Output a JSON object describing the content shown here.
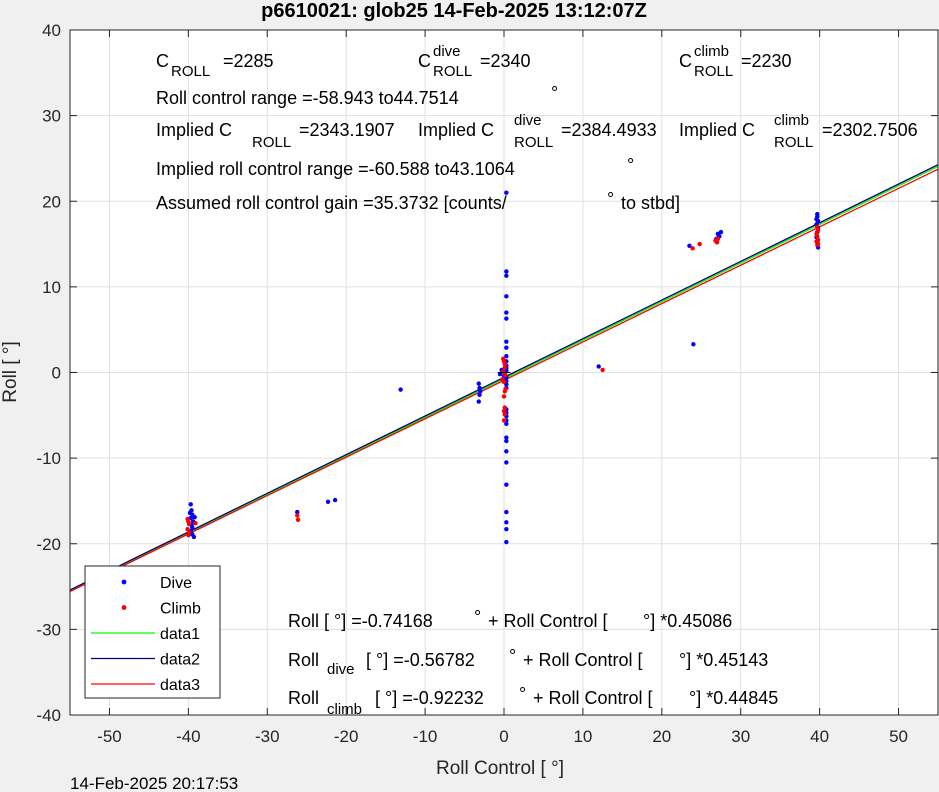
{
  "chart_data": {
    "type": "scatter",
    "title": "p6610021: glob25 14-Feb-2025 13:12:07Z",
    "xlabel": "Roll Control [   °]",
    "ylabel": "Roll [   °]",
    "xlim": [
      -55,
      55
    ],
    "ylim": [
      -40,
      40
    ],
    "xticks": [
      -50,
      -40,
      -30,
      -20,
      -10,
      0,
      10,
      20,
      30,
      40,
      50
    ],
    "yticks": [
      -40,
      -30,
      -20,
      -10,
      0,
      10,
      20,
      30,
      40
    ],
    "grid": true,
    "legend_position": "bottom-left",
    "colors": {
      "dive": "#0000ff",
      "climb": "#ff0000",
      "data1": "#00ff00",
      "data2": "#00007f",
      "data3": "#ff0000"
    },
    "series": [
      {
        "name": "Dive",
        "mode": "markers",
        "points": [
          [
            -39.7,
            -15.4
          ],
          [
            -39.6,
            -16.1
          ],
          [
            -39.5,
            -16.6
          ],
          [
            -39.7,
            -17.0
          ],
          [
            -39.4,
            -17.4
          ],
          [
            -39.6,
            -17.8
          ],
          [
            -39.5,
            -18.1
          ],
          [
            -39.7,
            -18.5
          ],
          [
            -39.5,
            -18.9
          ],
          [
            -39.3,
            -19.2
          ],
          [
            -39.8,
            -16.4
          ],
          [
            -39.2,
            -16.9
          ],
          [
            -26.2,
            -16.3
          ],
          [
            -22.3,
            -15.1
          ],
          [
            -21.4,
            -14.9
          ],
          [
            -13.1,
            -2.0
          ],
          [
            -3.2,
            -1.3
          ],
          [
            -3.1,
            -1.8
          ],
          [
            -3.0,
            -2.2
          ],
          [
            -3.1,
            -2.6
          ],
          [
            -3.2,
            -3.4
          ],
          [
            -0.5,
            -0.2
          ],
          [
            -0.3,
            0.3
          ],
          [
            0.0,
            -0.4
          ],
          [
            0.3,
            11.8
          ],
          [
            0.3,
            11.3
          ],
          [
            0.3,
            8.9
          ],
          [
            0.3,
            7.0
          ],
          [
            0.3,
            6.3
          ],
          [
            0.3,
            3.6
          ],
          [
            0.3,
            2.9
          ],
          [
            0.3,
            1.9
          ],
          [
            0.3,
            1.3
          ],
          [
            0.3,
            0.8
          ],
          [
            0.3,
            0.5
          ],
          [
            0.3,
            0.2
          ],
          [
            0.3,
            -0.6
          ],
          [
            0.3,
            -1.0
          ],
          [
            0.3,
            -1.4
          ],
          [
            0.3,
            -1.8
          ],
          [
            0.3,
            -4.3
          ],
          [
            0.3,
            -4.7
          ],
          [
            0.3,
            -5.1
          ],
          [
            0.3,
            -5.6
          ],
          [
            0.3,
            -6.0
          ],
          [
            0.3,
            -7.6
          ],
          [
            0.3,
            -8.0
          ],
          [
            0.3,
            -9.2
          ],
          [
            0.3,
            -10.5
          ],
          [
            0.3,
            -13.1
          ],
          [
            0.3,
            -16.3
          ],
          [
            0.3,
            -17.5
          ],
          [
            0.3,
            -18.3
          ],
          [
            0.3,
            -19.8
          ],
          [
            0.3,
            21.0
          ],
          [
            12.0,
            0.7
          ],
          [
            23.5,
            14.8
          ],
          [
            24.0,
            3.3
          ],
          [
            26.9,
            15.6
          ],
          [
            27.1,
            16.2
          ],
          [
            27.3,
            15.9
          ],
          [
            27.5,
            16.4
          ],
          [
            27.2,
            16.0
          ],
          [
            39.7,
            18.5
          ],
          [
            39.7,
            18.2
          ],
          [
            39.6,
            17.9
          ],
          [
            39.8,
            17.7
          ],
          [
            39.6,
            17.3
          ],
          [
            39.8,
            16.9
          ],
          [
            39.7,
            16.4
          ],
          [
            39.6,
            15.8
          ],
          [
            39.7,
            15.2
          ],
          [
            39.8,
            14.6
          ]
        ]
      },
      {
        "name": "Climb",
        "mode": "markers",
        "points": [
          [
            -40.1,
            -17.1
          ],
          [
            -40.0,
            -17.4
          ],
          [
            -39.9,
            -17.7
          ],
          [
            -40.1,
            -18.3
          ],
          [
            -39.9,
            -18.7
          ],
          [
            -40.0,
            -19.0
          ],
          [
            -39.1,
            -17.6
          ],
          [
            -26.2,
            -16.7
          ],
          [
            -26.1,
            -17.2
          ],
          [
            -0.2,
            -0.8
          ],
          [
            0.0,
            -1.1
          ],
          [
            0.1,
            0.6
          ],
          [
            0.1,
            1.0
          ],
          [
            -0.1,
            1.6
          ],
          [
            0.0,
            1.3
          ],
          [
            0.2,
            -1.9
          ],
          [
            0.1,
            -2.2
          ],
          [
            0.0,
            -2.8
          ],
          [
            0.1,
            -4.1
          ],
          [
            0.0,
            -4.5
          ],
          [
            0.1,
            -4.9
          ],
          [
            0.0,
            -5.6
          ],
          [
            -0.1,
            0.1
          ],
          [
            0.2,
            -0.3
          ],
          [
            12.5,
            0.3
          ],
          [
            23.9,
            14.5
          ],
          [
            24.8,
            15.0
          ],
          [
            26.8,
            15.4
          ],
          [
            27.0,
            15.2
          ],
          [
            27.1,
            15.6
          ],
          [
            39.7,
            17.0
          ],
          [
            39.8,
            16.6
          ],
          [
            39.6,
            16.2
          ],
          [
            39.7,
            15.9
          ],
          [
            39.8,
            15.5
          ],
          [
            39.6,
            15.3
          ],
          [
            39.8,
            15.0
          ],
          [
            39.7,
            14.9
          ]
        ]
      },
      {
        "name": "data1",
        "mode": "line",
        "intercept": -0.74168,
        "slope": 0.45086
      },
      {
        "name": "data2",
        "mode": "line",
        "intercept": -0.56782,
        "slope": 0.45143
      },
      {
        "name": "data3",
        "mode": "line",
        "intercept": -0.92232,
        "slope": 0.44845
      }
    ],
    "annotations": {
      "c_roll": {
        "main": "C",
        "sub": "ROLL",
        "rest": "=2285"
      },
      "c_roll_dive": {
        "main": "C",
        "sup": "dive",
        "sub": "ROLL",
        "rest": "=2340"
      },
      "c_roll_climb": {
        "main": "C",
        "sup": "climb",
        "sub": "ROLL",
        "rest": "=2230"
      },
      "control_range": "Roll control range =-58.943 to44.7514",
      "implied": {
        "lead": "Implied C",
        "sub": "ROLL",
        "rest": "=2343.1907"
      },
      "implied_dive": {
        "lead": "Implied C",
        "sup": "dive",
        "sub": "ROLL",
        "rest": "=2384.4933"
      },
      "implied_climb": {
        "lead": "Implied C",
        "sup": "climb",
        "sub": "ROLL",
        "rest": "=2302.7506"
      },
      "implied_range": "Implied roll control range =-60.588 to43.1064",
      "gain_a": "Assumed roll control gain =35.3732 [counts/",
      "gain_b": "to stbd]",
      "degree_mark": "°",
      "fit_all_a": "Roll [   °] =-0.74168",
      "fit_all_b": "+ Roll Control [",
      "fit_all_c": "°] *0.45086",
      "fit_dive_lead": "Roll",
      "fit_dive_sub": "dive",
      "fit_dive_a": "[   °] =-0.56782",
      "fit_dive_b": "+ Roll Control [",
      "fit_dive_c": "°] *0.45143",
      "fit_climb_lead": "Roll",
      "fit_climb_sub": "climb",
      "fit_climb_a": "[   °] =-0.92232",
      "fit_climb_b": "+ Roll Control [",
      "fit_climb_c": "°] *0.44845"
    },
    "timestamp": "14-Feb-2025 20:17:53"
  }
}
